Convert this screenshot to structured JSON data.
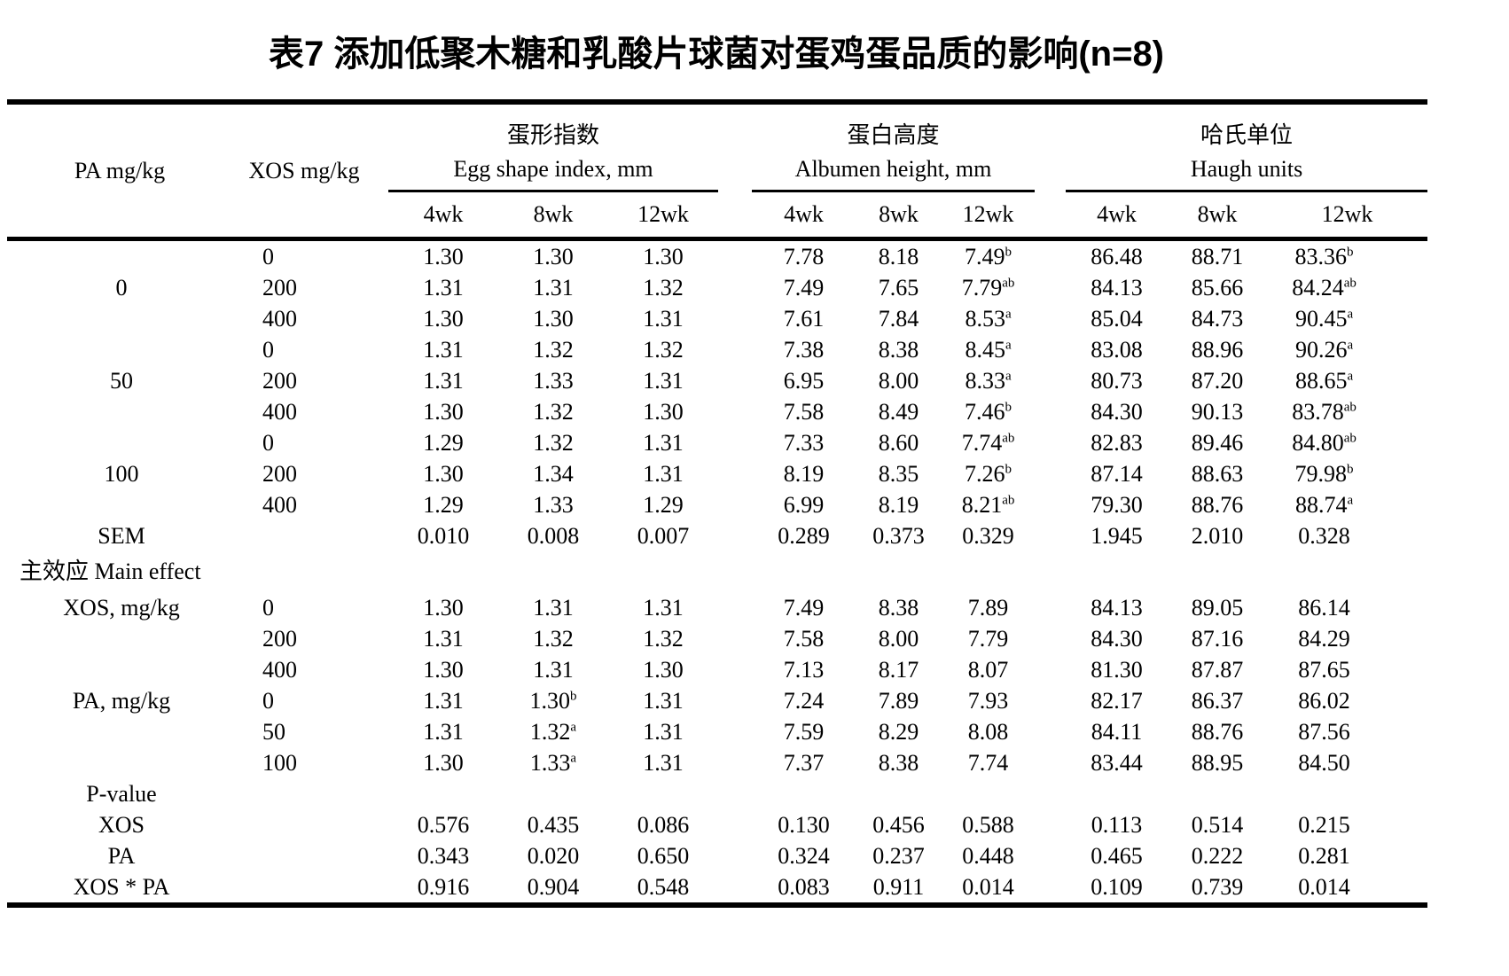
{
  "title": "表7 添加低聚木糖和乳酸片球菌对蛋鸡蛋品质的影响(n=8)",
  "theme": {
    "background_color": "#ffffff",
    "text_color": "#000000",
    "rule_color": "#000000"
  },
  "table": {
    "col_headers": {
      "pa": "PA mg/kg",
      "xos": "XOS mg/kg"
    },
    "groups": [
      {
        "zh": "蛋形指数",
        "en": "Egg shape index, mm",
        "subcols": [
          "4wk",
          "8wk",
          "12wk"
        ]
      },
      {
        "zh": "蛋白高度",
        "en": "Albumen height, mm",
        "subcols": [
          "4wk",
          "8wk",
          "12wk"
        ]
      },
      {
        "zh": "哈氏单位",
        "en": "Haugh units",
        "subcols": [
          "4wk",
          "8wk",
          "12wk"
        ]
      }
    ],
    "rows": [
      {
        "type": "data",
        "cells": [
          "",
          "0",
          "1.30",
          "1.30",
          "1.30",
          "7.78",
          "8.18",
          "7.49^b",
          "86.48",
          "88.71",
          "83.36^b"
        ]
      },
      {
        "type": "data",
        "cells": [
          "0",
          "200",
          "1.31",
          "1.31",
          "1.32",
          "7.49",
          "7.65",
          "7.79^ab",
          "84.13",
          "85.66",
          "84.24^ab"
        ]
      },
      {
        "type": "data",
        "cells": [
          "",
          "400",
          "1.30",
          "1.30",
          "1.31",
          "7.61",
          "7.84",
          "8.53^a",
          "85.04",
          "84.73",
          "90.45^a"
        ]
      },
      {
        "type": "data",
        "cells": [
          "",
          "0",
          "1.31",
          "1.32",
          "1.32",
          "7.38",
          "8.38",
          "8.45^a",
          "83.08",
          "88.96",
          "90.26^a"
        ]
      },
      {
        "type": "data",
        "cells": [
          "50",
          "200",
          "1.31",
          "1.33",
          "1.31",
          "6.95",
          "8.00",
          "8.33^a",
          "80.73",
          "87.20",
          "88.65^a"
        ]
      },
      {
        "type": "data",
        "cells": [
          "",
          "400",
          "1.30",
          "1.32",
          "1.30",
          "7.58",
          "8.49",
          "7.46^b",
          "84.30",
          "90.13",
          "83.78^ab"
        ]
      },
      {
        "type": "data",
        "cells": [
          "",
          "0",
          "1.29",
          "1.32",
          "1.31",
          "7.33",
          "8.60",
          "7.74^ab",
          "82.83",
          "89.46",
          "84.80^ab"
        ]
      },
      {
        "type": "data",
        "cells": [
          "100",
          "200",
          "1.30",
          "1.34",
          "1.31",
          "8.19",
          "8.35",
          "7.26^b",
          "87.14",
          "88.63",
          "79.98^b"
        ]
      },
      {
        "type": "data",
        "cells": [
          "",
          "400",
          "1.29",
          "1.33",
          "1.29",
          "6.99",
          "8.19",
          "8.21^ab",
          "79.30",
          "88.76",
          "88.74^a"
        ]
      },
      {
        "type": "data",
        "cells": [
          "SEM",
          "",
          "0.010",
          "0.008",
          "0.007",
          "0.289",
          "0.373",
          "0.329",
          "1.945",
          "2.010",
          "0.328"
        ]
      },
      {
        "type": "section",
        "label": "主效应 Main effect"
      },
      {
        "type": "data",
        "cells": [
          "XOS, mg/kg",
          "0",
          "1.30",
          "1.31",
          "1.31",
          "7.49",
          "8.38",
          "7.89",
          "84.13",
          "89.05",
          "86.14"
        ]
      },
      {
        "type": "data",
        "cells": [
          "",
          "200",
          "1.31",
          "1.32",
          "1.32",
          "7.58",
          "8.00",
          "7.79",
          "84.30",
          "87.16",
          "84.29"
        ]
      },
      {
        "type": "data",
        "cells": [
          "",
          "400",
          "1.30",
          "1.31",
          "1.30",
          "7.13",
          "8.17",
          "8.07",
          "81.30",
          "87.87",
          "87.65"
        ]
      },
      {
        "type": "data",
        "cells": [
          "PA, mg/kg",
          "0",
          "1.31",
          "1.30^b",
          "1.31",
          "7.24",
          "7.89",
          "7.93",
          "82.17",
          "86.37",
          "86.02"
        ]
      },
      {
        "type": "data",
        "cells": [
          "",
          "50",
          "1.31",
          "1.32^a",
          "1.31",
          "7.59",
          "8.29",
          "8.08",
          "84.11",
          "88.76",
          "87.56"
        ]
      },
      {
        "type": "data",
        "cells": [
          "",
          "100",
          "1.30",
          "1.33^a",
          "1.31",
          "7.37",
          "8.38",
          "7.74",
          "83.44",
          "88.95",
          "84.50"
        ]
      },
      {
        "type": "data",
        "cells": [
          "P-value",
          "",
          "",
          "",
          "",
          "",
          "",
          "",
          "",
          "",
          ""
        ]
      },
      {
        "type": "data",
        "cells": [
          "XOS",
          "",
          "0.576",
          "0.435",
          "0.086",
          "0.130",
          "0.456",
          "0.588",
          "0.113",
          "0.514",
          "0.215"
        ]
      },
      {
        "type": "data",
        "cells": [
          "PA",
          "",
          "0.343",
          "0.020",
          "0.650",
          "0.324",
          "0.237",
          "0.448",
          "0.465",
          "0.222",
          "0.281"
        ]
      },
      {
        "type": "data",
        "cells": [
          "XOS * PA",
          "",
          "0.916",
          "0.904",
          "0.548",
          "0.083",
          "0.911",
          "0.014",
          "0.109",
          "0.739",
          "0.014"
        ]
      }
    ]
  }
}
